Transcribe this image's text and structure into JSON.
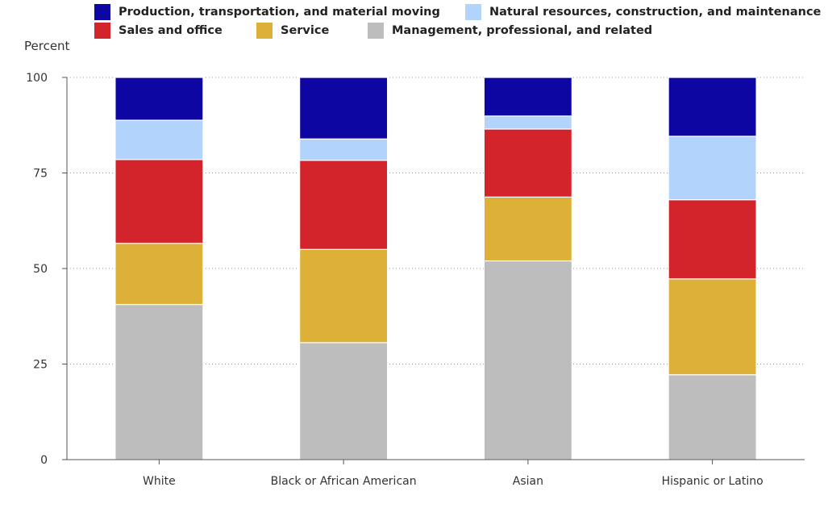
{
  "chart_data": {
    "type": "bar",
    "stacked": true,
    "ylabel": "Percent",
    "ylim": [
      0,
      100
    ],
    "yticks": [
      0,
      25,
      50,
      75,
      100
    ],
    "grid": true,
    "legend_position": "top",
    "categories": [
      "White",
      "Black or African American",
      "Asian",
      "Hispanic or Latino"
    ],
    "series": [
      {
        "name": "Management, professional, and related",
        "color": "#bdbdbd",
        "values": [
          40.6,
          30.6,
          52.0,
          22.2
        ]
      },
      {
        "name": "Service",
        "color": "#ddb038",
        "values": [
          16.0,
          24.4,
          16.7,
          25.1
        ]
      },
      {
        "name": "Sales and office",
        "color": "#d3232b",
        "values": [
          21.9,
          23.3,
          17.8,
          20.7
        ]
      },
      {
        "name": "Natural resources, construction, and maintenance",
        "color": "#b2d4fc",
        "values": [
          10.3,
          5.6,
          3.4,
          16.6
        ]
      },
      {
        "name": "Production, transportation, and material moving",
        "color": "#0e06a3",
        "values": [
          11.2,
          16.1,
          10.1,
          15.4
        ]
      }
    ]
  }
}
